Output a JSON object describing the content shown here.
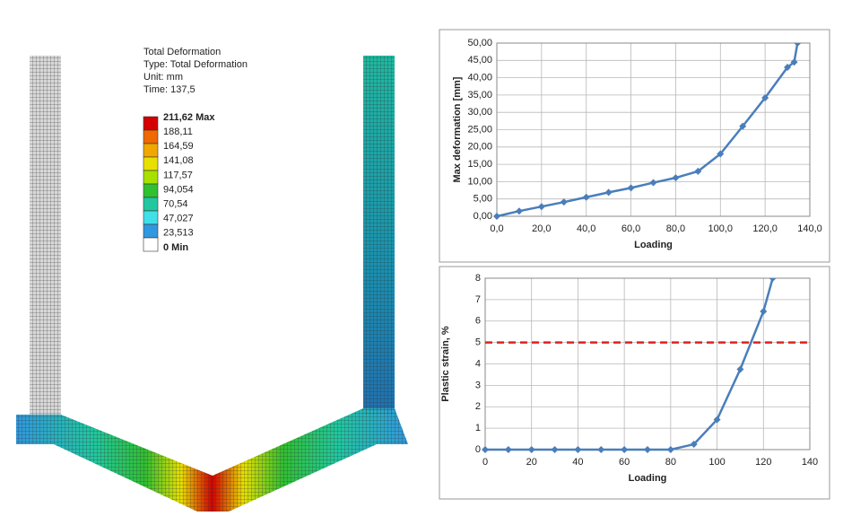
{
  "fea": {
    "lines": [
      "Total Deformation",
      "Type: Total Deformation",
      "Unit: mm",
      "Time: 137,5"
    ],
    "legend": {
      "labels": [
        "211,62 Max",
        "188,11",
        "164,59",
        "141,08",
        "117,57",
        "94,054",
        "70,54",
        "47,027",
        "23,513",
        "0 Min"
      ],
      "colors": [
        "#d40000",
        "#f06800",
        "#f0a800",
        "#e8e000",
        "#a8e000",
        "#30c030",
        "#20c8a0",
        "#40e0e8",
        "#3098e0",
        "#ffffff"
      ]
    }
  },
  "chart_data": [
    {
      "type": "line",
      "xlabel": "Loading",
      "ylabel": "Max deformation [mm]",
      "x": [
        0,
        10,
        20,
        30,
        40,
        50,
        60,
        70,
        80,
        90,
        100,
        110,
        120,
        130,
        133,
        134.5
      ],
      "series": [
        {
          "name": "Max deformation",
          "color": "#4a7ebb",
          "values": [
            0,
            1.5,
            2.8,
            4.1,
            5.5,
            6.9,
            8.2,
            9.7,
            11.1,
            13,
            18,
            26,
            34.2,
            43,
            44.5,
            50
          ]
        }
      ],
      "xlim": [
        0,
        140
      ],
      "ylim": [
        0,
        50
      ],
      "xticks": [
        {
          "value": 0,
          "label": "0,0"
        },
        {
          "value": 20,
          "label": "20,0"
        },
        {
          "value": 40,
          "label": "40,0"
        },
        {
          "value": 60,
          "label": "60,0"
        },
        {
          "value": 80,
          "label": "80,0"
        },
        {
          "value": 100,
          "label": "100,0"
        },
        {
          "value": 120,
          "label": "120,0"
        },
        {
          "value": 140,
          "label": "140,0"
        }
      ],
      "yticks": [
        {
          "value": 0,
          "label": "0,00"
        },
        {
          "value": 5,
          "label": "5,00"
        },
        {
          "value": 10,
          "label": "10,00"
        },
        {
          "value": 15,
          "label": "15,00"
        },
        {
          "value": 20,
          "label": "20,00"
        },
        {
          "value": 25,
          "label": "25,00"
        },
        {
          "value": 30,
          "label": "30,00"
        },
        {
          "value": 35,
          "label": "35,00"
        },
        {
          "value": 40,
          "label": "40,00"
        },
        {
          "value": 45,
          "label": "45,00"
        },
        {
          "value": 50,
          "label": "50,00"
        }
      ],
      "grid": true
    },
    {
      "type": "line",
      "xlabel": "Loading",
      "ylabel": "Plastic strain, %",
      "x": [
        0,
        10,
        20,
        30,
        40,
        50,
        60,
        70,
        80,
        90,
        100,
        110,
        120,
        124
      ],
      "series": [
        {
          "name": "Plastic strain",
          "color": "#4a7ebb",
          "values": [
            0,
            0,
            0,
            0,
            0,
            0,
            0,
            0,
            0,
            0.25,
            1.4,
            3.75,
            6.45,
            8
          ]
        }
      ],
      "xlim": [
        0,
        140
      ],
      "ylim": [
        0,
        8
      ],
      "xticks": [
        0,
        20,
        40,
        60,
        80,
        100,
        120,
        140
      ],
      "yticks": [
        0,
        1,
        2,
        3,
        4,
        5,
        6,
        7,
        8
      ],
      "reference_line": {
        "value": 5,
        "color": "#e02020"
      },
      "grid": true
    }
  ]
}
